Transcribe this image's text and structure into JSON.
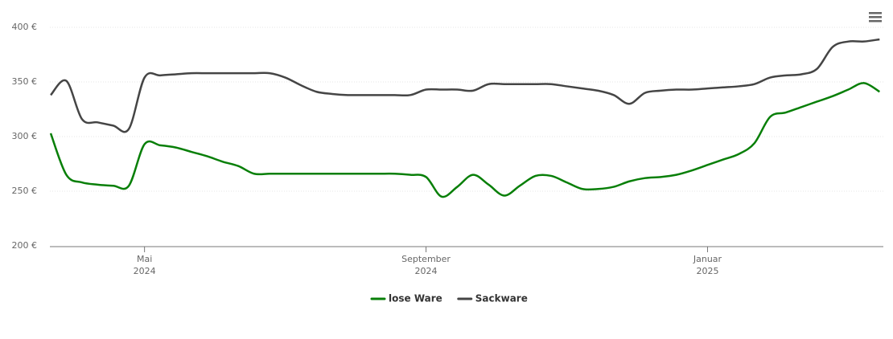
{
  "chart_data": {
    "type": "line",
    "categories": [
      null,
      null,
      null,
      null,
      null,
      null,
      "Mai 2024",
      null,
      null,
      null,
      null,
      null,
      null,
      null,
      null,
      null,
      null,
      null,
      null,
      null,
      null,
      null,
      null,
      null,
      "September 2024",
      null,
      null,
      null,
      null,
      null,
      null,
      null,
      null,
      null,
      null,
      null,
      null,
      null,
      null,
      null,
      null,
      null,
      "Januar 2025",
      null,
      null,
      null,
      null,
      null,
      null,
      null,
      null,
      null,
      null,
      null
    ],
    "series": [
      {
        "name": "lose Ware",
        "color": "#087f08",
        "values": [
          303,
          265,
          258,
          256,
          255,
          255,
          293,
          292,
          290,
          286,
          282,
          277,
          273,
          266,
          266,
          266,
          266,
          266,
          266,
          266,
          266,
          266,
          266,
          265,
          263,
          245,
          254,
          265,
          256,
          246,
          255,
          264,
          264,
          258,
          252,
          252,
          254,
          259,
          262,
          263,
          265,
          269,
          274,
          279,
          284,
          294,
          318,
          322,
          327,
          332,
          337,
          343,
          349,
          341
        ]
      },
      {
        "name": "Sackware",
        "color": "#454545",
        "values": [
          338,
          351,
          316,
          313,
          310,
          307,
          354,
          356,
          357,
          358,
          358,
          358,
          358,
          358,
          358,
          354,
          347,
          341,
          339,
          338,
          338,
          338,
          338,
          338,
          343,
          343,
          343,
          342,
          348,
          348,
          348,
          348,
          348,
          346,
          344,
          342,
          338,
          330,
          340,
          342,
          343,
          343,
          344,
          345,
          346,
          348,
          354,
          356,
          357,
          362,
          382,
          387,
          387,
          389
        ]
      }
    ],
    "ylim": [
      200,
      400
    ],
    "yticks": [
      {
        "value": 200,
        "label": "200 €"
      },
      {
        "value": 250,
        "label": "250 €"
      },
      {
        "value": 300,
        "label": "300 €"
      },
      {
        "value": 350,
        "label": "350 €"
      },
      {
        "value": 400,
        "label": "400 €"
      }
    ],
    "grid": true
  }
}
